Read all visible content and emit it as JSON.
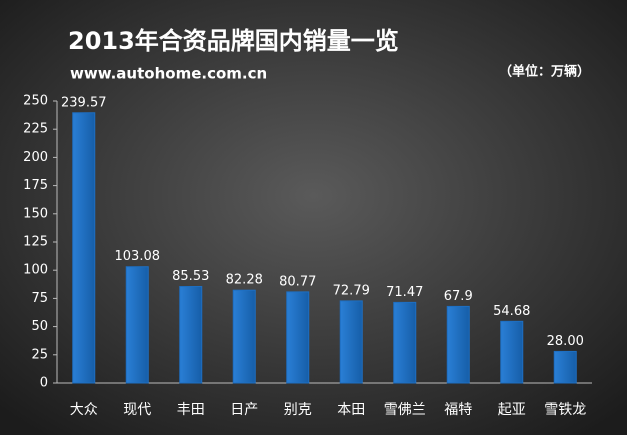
{
  "chart_data": {
    "type": "bar",
    "title": "2013年合资品牌国内销量一览",
    "subtitle": "www.autohome.com.cn",
    "unit_note": "（单位：万辆）",
    "categories": [
      "大众",
      "现代",
      "丰田",
      "日产",
      "别克",
      "本田",
      "雪佛兰",
      "福特",
      "起亚",
      "雪铁龙"
    ],
    "values": [
      239.57,
      103.08,
      85.53,
      82.28,
      80.77,
      72.79,
      71.47,
      67.9,
      54.68,
      28
    ],
    "value_labels": [
      "239.57",
      "103.08",
      "85.53",
      "82.28",
      "80.77",
      "72.79",
      "71.47",
      "67.9",
      "54.68",
      "28.00"
    ],
    "color": "#1e6fc2",
    "ylim": [
      0,
      250
    ],
    "yticks": [
      0,
      25,
      50,
      75,
      100,
      125,
      150,
      175,
      200,
      225,
      250
    ],
    "grid": false
  }
}
